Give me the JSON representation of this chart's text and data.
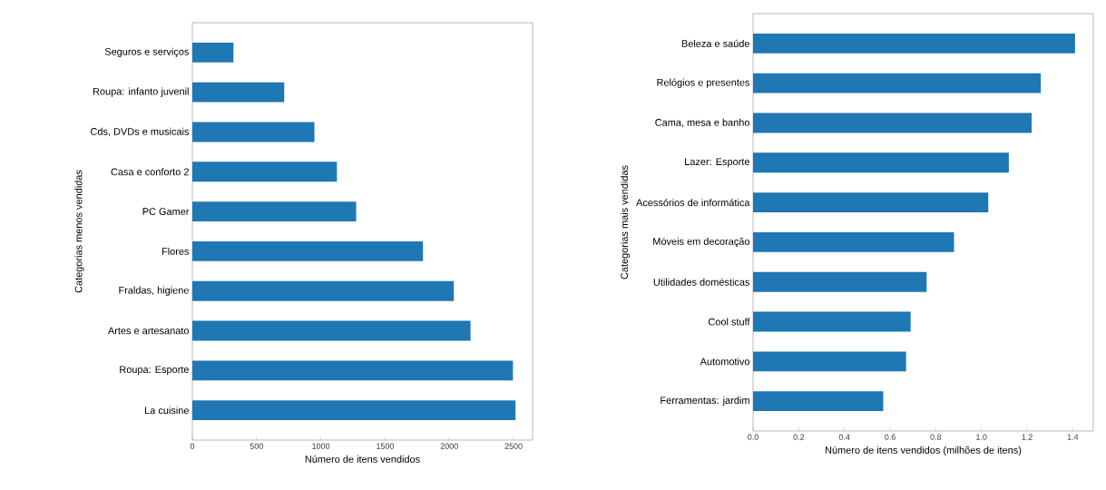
{
  "chart_data": [
    {
      "type": "bar",
      "orientation": "horizontal",
      "xlabel": "Número de itens vendidos",
      "ylabel": "Categorias menos vendidas",
      "categories": [
        "Seguros e serviços",
        "Roupa: infanto juvenil",
        "Cds, DVDs e musicais",
        "Casa e conforto 2",
        "PC Gamer",
        "Flores",
        "Fraldas, higiene",
        "Artes e artesanato",
        "Roupa: Esporte",
        "La cuisine"
      ],
      "values": [
        320,
        715,
        950,
        1125,
        1275,
        1795,
        2035,
        2165,
        2495,
        2515
      ],
      "color": "#1f77b4",
      "xlim": [
        0,
        2648
      ],
      "xticks": [
        0,
        500,
        1000,
        1500,
        2000,
        2500
      ]
    },
    {
      "type": "bar",
      "orientation": "horizontal",
      "xlabel": "Número de itens vendidos (milhões de itens)",
      "ylabel": "Categorias mais vendidas",
      "categories": [
        "Beleza e saúde",
        "Relógios e presentes",
        "Cama, mesa e banho",
        "Lazer: Esporte",
        "Acessórios de informática",
        "Móveis em decoração",
        "Utilidades domésticas",
        "Cool stuff",
        "Automotivo",
        "Ferramentas: jardim"
      ],
      "values": [
        1.41,
        1.26,
        1.22,
        1.12,
        1.03,
        0.88,
        0.76,
        0.69,
        0.67,
        0.57
      ],
      "color": "#1f77b4",
      "xlim": [
        0,
        1.49
      ],
      "xticks": [
        {
          "value": 0,
          "label": "0.0"
        },
        0.2,
        0.4,
        0.6,
        0.8,
        {
          "value": 1,
          "label": "1.0"
        },
        1.2,
        1.4
      ]
    }
  ]
}
